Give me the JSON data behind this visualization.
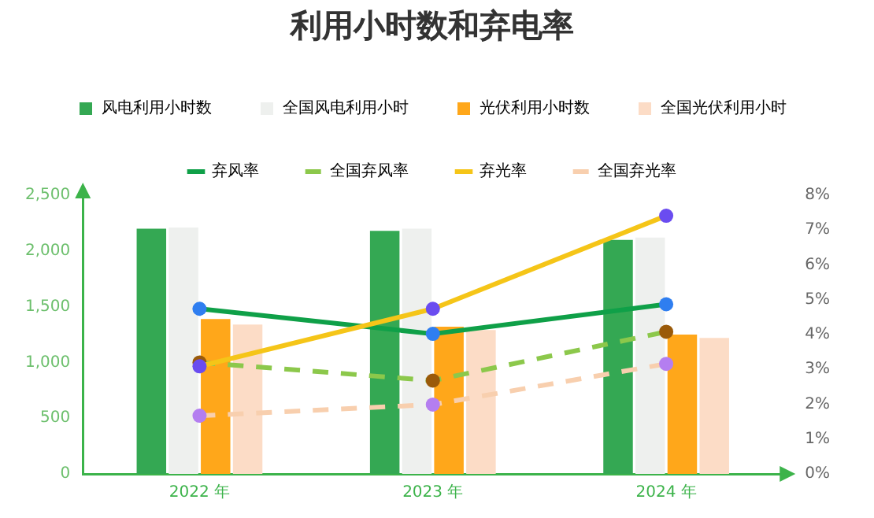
{
  "chart_data": {
    "type": "bar",
    "title": "利用小时数和弃电率",
    "categories": [
      "2022 年",
      "2023 年",
      "2024 年"
    ],
    "series": [
      {
        "name": "风电利用小时数",
        "color": "#34a853",
        "values": [
          2200,
          2180,
          2100
        ]
      },
      {
        "name": "全国风电利用小时",
        "color": "#eef0ee",
        "values": [
          2210,
          2200,
          2120
        ]
      },
      {
        "name": "光伏利用小时数",
        "color": "#ffa71a",
        "values": [
          1390,
          1320,
          1250
        ]
      },
      {
        "name": "全国光伏利用小时",
        "color": "#fcdcc6",
        "values": [
          1340,
          1290,
          1220
        ]
      },
      {
        "name": "弃风率",
        "type": "line",
        "axis": "y2",
        "color": "#0fa048",
        "colors": [
          "#2f7ef0",
          "#2f7ef0",
          "#2f7ef0"
        ],
        "line_style": "solid",
        "values": [
          4.74,
          4.02,
          4.87
        ]
      },
      {
        "name": "全国弃风率",
        "type": "line",
        "axis": "y2",
        "color": "#8cc84b",
        "colors": [
          "#9a5a0a",
          "#9a5a0a",
          "#9a5a0a"
        ],
        "line_style": "dashed",
        "values": [
          3.2,
          2.68,
          4.08
        ]
      },
      {
        "name": "弃光率",
        "type": "line",
        "axis": "y2",
        "color": "#f5c518",
        "colors": [
          "#6a4cf0",
          "#6a4cf0",
          "#6a4cf0"
        ],
        "line_style": "solid",
        "values": [
          3.09,
          4.74,
          7.41
        ]
      },
      {
        "name": "全国弃光率",
        "type": "line",
        "axis": "y2",
        "color": "#f8cfae",
        "colors": [
          "#b47ef0",
          "#b47ef0",
          "#b47ef0"
        ],
        "line_style": "dashed",
        "values": [
          1.67,
          1.99,
          3.16
        ]
      }
    ],
    "ylim": [
      0,
      2500
    ],
    "yticks": [
      0,
      500,
      {
        "value": 1000,
        "label": "1,000"
      },
      {
        "value": 1500,
        "label": "1,500"
      },
      {
        "value": 2000,
        "label": "2,000"
      },
      {
        "value": 2500,
        "label": "2,500"
      }
    ],
    "y2lim": [
      0,
      8
    ],
    "y2ticks": [
      {
        "value": 0,
        "label": "0%"
      },
      {
        "value": 1,
        "label": "1%"
      },
      {
        "value": 2,
        "label": "2%"
      },
      {
        "value": 3,
        "label": "3%"
      },
      {
        "value": 4,
        "label": "4%"
      },
      {
        "value": 5,
        "label": "5%"
      },
      {
        "value": 6,
        "label": "6%"
      },
      {
        "value": 7,
        "label": "7%"
      },
      {
        "value": 8,
        "label": "8%"
      }
    ],
    "grid": false,
    "legend": "top",
    "marker": "circle"
  }
}
